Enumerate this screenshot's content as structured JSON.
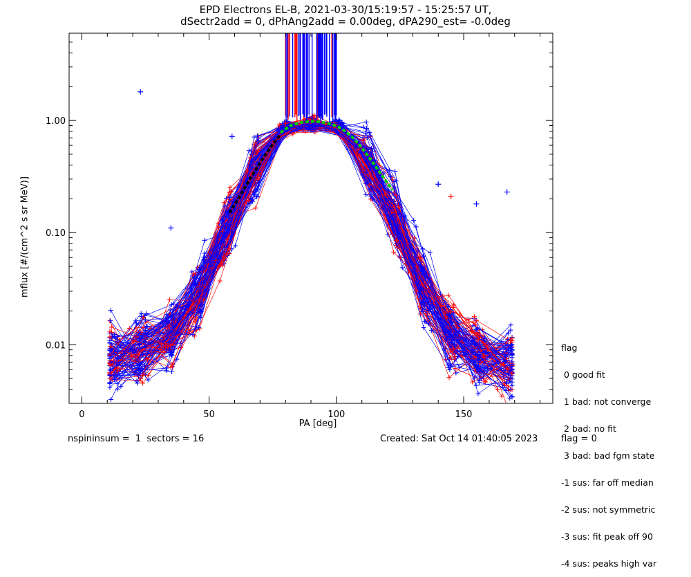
{
  "chart_data": {
    "type": "line",
    "title_line1": "EPD Electrons EL-B, 2021-03-30/15:19:57 - 15:25:57 UT,",
    "title_line2": "dSectr2add = 0, dPhAng2add = 0.00deg, dPA290_est=  -0.0deg",
    "xlabel": "PA [deg]",
    "ylabel": "mflux [#/(cm^2 s sr MeV)]",
    "xlim": [
      -5,
      185
    ],
    "ylim": [
      0.003,
      6.0
    ],
    "yscale": "log",
    "x_ticks": [
      0,
      50,
      100,
      150
    ],
    "x_tick_labels": [
      "0",
      "50",
      "100",
      "150"
    ],
    "y_ticks": [
      0.01,
      0.1,
      1.0
    ],
    "y_tick_labels": [
      "0.01",
      "0.10",
      "1.00"
    ],
    "colors": {
      "series_a": "#0000ff",
      "series_b": "#ff0000",
      "fit_dark": "#000000",
      "fit_green": "#00cc00"
    },
    "profile": {
      "pa": [
        12,
        23,
        35,
        46,
        57,
        68,
        79,
        90,
        101,
        112,
        123,
        134,
        145,
        156,
        168
      ],
      "flux": [
        0.0075,
        0.009,
        0.012,
        0.028,
        0.11,
        0.38,
        0.86,
        0.93,
        0.88,
        0.45,
        0.14,
        0.032,
        0.012,
        0.0085,
        0.0065
      ]
    },
    "fit_dark": {
      "pa": [
        58,
        62,
        66,
        70,
        74,
        78
      ],
      "flux": [
        0.15,
        0.21,
        0.3,
        0.42,
        0.57,
        0.75
      ]
    },
    "fit_green": {
      "pa": [
        78,
        82,
        86,
        90,
        94,
        98,
        102,
        106,
        110,
        114,
        118,
        122
      ],
      "flux": [
        0.78,
        0.9,
        0.96,
        0.98,
        0.97,
        0.93,
        0.85,
        0.72,
        0.57,
        0.43,
        0.32,
        0.24
      ]
    },
    "outliers": [
      {
        "pa": 23,
        "flux": 1.8,
        "color": "blue"
      },
      {
        "pa": 59,
        "flux": 0.72,
        "color": "blue"
      },
      {
        "pa": 140,
        "flux": 0.27,
        "color": "blue"
      },
      {
        "pa": 155,
        "flux": 0.18,
        "color": "blue"
      },
      {
        "pa": 167,
        "flux": 0.23,
        "color": "blue"
      },
      {
        "pa": 145,
        "flux": 0.21,
        "color": "red"
      },
      {
        "pa": 35,
        "flux": 0.11,
        "color": "blue"
      }
    ]
  },
  "legend": {
    "title": "flag",
    "items": [
      " 0 good fit",
      " 1 bad: not converge",
      " 2 bad: no fit",
      " 3 bad: bad fgm state",
      "-1 sus: far off median",
      "-2 sus: not symmetric",
      "-3 sus: fit peak off 90",
      "-4 sus: peaks high var"
    ]
  },
  "footer": {
    "left": "nspininsum =  1  sectors = 16",
    "middle": "Created: Sat Oct 14 01:40:05 2023",
    "right": "flag = 0"
  }
}
